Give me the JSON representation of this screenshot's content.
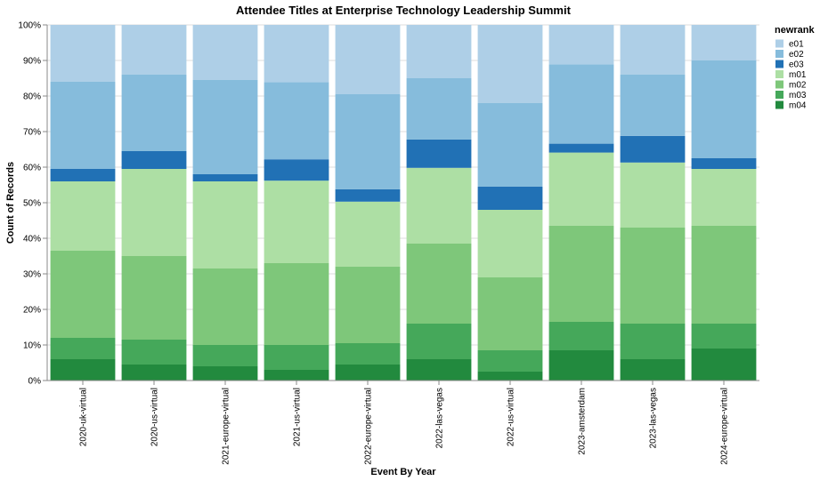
{
  "chart_data": {
    "type": "bar",
    "stacked": "normalized",
    "title": "Attendee Titles at Enterprise Technology Leadership Summit",
    "xlabel": "Event By Year",
    "ylabel": "Count of Records",
    "ylim": [
      0,
      1
    ],
    "y_ticks": [
      0,
      0.1,
      0.2,
      0.3,
      0.4,
      0.5,
      0.6,
      0.7,
      0.8,
      0.9,
      1.0
    ],
    "y_tick_labels": [
      "0%",
      "10%",
      "20%",
      "30%",
      "40%",
      "50%",
      "60%",
      "70%",
      "80%",
      "90%",
      "100%"
    ],
    "categories": [
      "2020-uk-virtual",
      "2020-us-virtual",
      "2021-europe-virtual",
      "2021-us-virtual",
      "2022-europe-virtual",
      "2022-las-vegas",
      "2022-us-virtual",
      "2023-amsterdam",
      "2023-las-vegas",
      "2024-europe-virtual"
    ],
    "legend_title": "newrank",
    "legend_position": "top-right",
    "stack_order_bottom_to_top": [
      "m04",
      "m03",
      "m02",
      "m01",
      "e03",
      "e02",
      "e01"
    ],
    "legend_order": [
      "e01",
      "e02",
      "e03",
      "m01",
      "m02",
      "m03",
      "m04"
    ],
    "series": [
      {
        "name": "m04",
        "color": "#228a3e",
        "values": [
          0.06,
          0.045,
          0.04,
          0.03,
          0.045,
          0.06,
          0.025,
          0.085,
          0.06,
          0.09
        ]
      },
      {
        "name": "m03",
        "color": "#45a85a",
        "values": [
          0.06,
          0.07,
          0.06,
          0.07,
          0.06,
          0.1,
          0.06,
          0.08,
          0.1,
          0.07
        ]
      },
      {
        "name": "m02",
        "color": "#7ec77a",
        "values": [
          0.245,
          0.235,
          0.215,
          0.23,
          0.215,
          0.225,
          0.205,
          0.27,
          0.27,
          0.275
        ]
      },
      {
        "name": "m01",
        "color": "#addfa4",
        "values": [
          0.195,
          0.245,
          0.245,
          0.232,
          0.183,
          0.213,
          0.19,
          0.206,
          0.183,
          0.16
        ]
      },
      {
        "name": "e03",
        "color": "#2171b5",
        "values": [
          0.035,
          0.05,
          0.02,
          0.06,
          0.035,
          0.08,
          0.065,
          0.025,
          0.075,
          0.03
        ]
      },
      {
        "name": "e02",
        "color": "#86bcdc",
        "values": [
          0.245,
          0.215,
          0.265,
          0.217,
          0.267,
          0.172,
          0.235,
          0.223,
          0.172,
          0.275
        ]
      },
      {
        "name": "e01",
        "color": "#aecfe7",
        "values": [
          0.16,
          0.14,
          0.155,
          0.161,
          0.195,
          0.15,
          0.22,
          0.111,
          0.14,
          0.1
        ]
      }
    ]
  }
}
